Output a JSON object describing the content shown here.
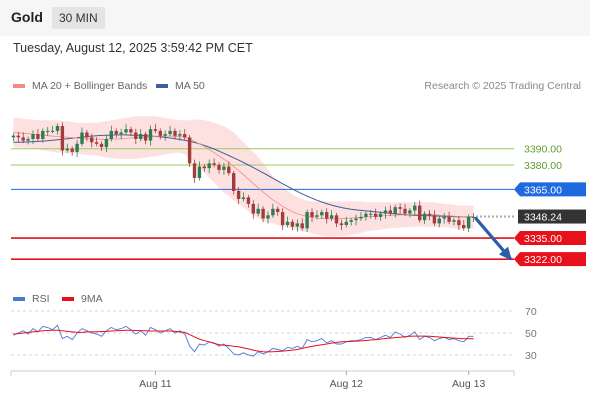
{
  "header": {
    "symbol": "Gold",
    "timeframe": "30 MIN",
    "timestamp": "Tuesday, August 12, 2025 3:59:42 PM CET"
  },
  "legend": {
    "ma_bb": {
      "label": "MA 20 + Bollinger Bands",
      "color": "#f28b82"
    },
    "ma50": {
      "label": "MA 50",
      "color": "#3f5f9e"
    },
    "rsi": {
      "label": "RSI",
      "color": "#4a7ad6"
    },
    "ma9": {
      "label": "9MA",
      "color": "#e8101a"
    }
  },
  "copyright": "Research © 2025 Trading Central",
  "colors": {
    "up": "#2e7d52",
    "down": "#a33c3c",
    "band": "#fde1e1",
    "resistance": "#9ccc65",
    "pivot": "#1e6be0",
    "support": "#e8101a",
    "arrow": "#2b5ea7"
  },
  "chart_data": [
    {
      "type": "candlestick",
      "title": "Gold 30 MIN",
      "ylim": [
        3303,
        3420
      ],
      "x_ticks": [
        {
          "label": "Aug 11",
          "index": 29
        },
        {
          "label": "Aug 12",
          "index": 68
        },
        {
          "label": "Aug 13",
          "index": 93
        }
      ],
      "levels": [
        {
          "value": 3390.0,
          "label": "3390.00",
          "kind": "resistance"
        },
        {
          "value": 3380.0,
          "label": "3380.00",
          "kind": "resistance"
        },
        {
          "value": 3365.0,
          "label": "3365.00",
          "kind": "pivot"
        },
        {
          "value": 3348.24,
          "label": "3348.24",
          "kind": "last"
        },
        {
          "value": 3335.0,
          "label": "3335.00",
          "kind": "support"
        },
        {
          "value": 3322.0,
          "label": "3322.00",
          "kind": "support"
        }
      ],
      "forecast_arrow": {
        "from": 3348.24,
        "to": 3322.0
      },
      "closes": [
        3398,
        3397,
        3395,
        3396,
        3399,
        3396,
        3401,
        3401,
        3401,
        3404,
        3389,
        3390,
        3388,
        3393,
        3400,
        3397,
        3394,
        3393,
        3391,
        3396,
        3401,
        3399,
        3400,
        3402,
        3400,
        3396,
        3399,
        3395,
        3402,
        3401,
        3398,
        3399,
        3401,
        3398,
        3399,
        3397,
        3381,
        3372,
        3379,
        3378,
        3381,
        3380,
        3377,
        3379,
        3375,
        3364,
        3359,
        3360,
        3356,
        3350,
        3353,
        3347,
        3349,
        3353,
        3351,
        3343,
        3345,
        3342,
        3344,
        3341,
        3351,
        3348,
        3349,
        3351,
        3347,
        3349,
        3344,
        3343,
        3345,
        3346,
        3347,
        3348,
        3350,
        3350,
        3348,
        3350,
        3352,
        3350,
        3354,
        3353,
        3350,
        3352,
        3355,
        3346,
        3350,
        3349,
        3344,
        3347,
        3348,
        3345,
        3346,
        3343,
        3341,
        3348,
        3348
      ],
      "ma20": [
        3400,
        3399.8,
        3399.5,
        3399.3,
        3399,
        3398.6,
        3398.3,
        3398,
        3397.8,
        3397.5,
        3397.3,
        3397.1,
        3396.8,
        3396.5,
        3396.3,
        3396.1,
        3396,
        3395.9,
        3395.8,
        3395.8,
        3395.9,
        3396,
        3396.1,
        3396.3,
        3396.6,
        3396.8,
        3397.1,
        3397.3,
        3397.5,
        3397.6,
        3397.7,
        3397.8,
        3397.8,
        3397.7,
        3397.5,
        3397,
        3396,
        3394.5,
        3393,
        3391.5,
        3389.5,
        3387.5,
        3385.5,
        3383.5,
        3381.5,
        3379,
        3376.5,
        3374,
        3371.3,
        3368.5,
        3366,
        3363.3,
        3360.8,
        3358.5,
        3356.5,
        3354.5,
        3352.8,
        3351.2,
        3350,
        3349,
        3348.3,
        3347.7,
        3347.3,
        3347,
        3346.8,
        3346.8,
        3346.8,
        3346.9,
        3347,
        3347.3,
        3347.5,
        3347.7,
        3348,
        3348.2,
        3348.4,
        3348.6,
        3348.8,
        3349,
        3349.1,
        3349.2,
        3349.3,
        3349.4,
        3349.5,
        3349.5,
        3349.5,
        3349.4,
        3349.3,
        3349.1,
        3348.9,
        3348.7,
        3348.5,
        3348.2,
        3348,
        3347.9,
        3347.8
      ],
      "bb_upper": [
        3409,
        3409,
        3408.5,
        3408,
        3408,
        3407.5,
        3407.5,
        3407.5,
        3407.5,
        3407.5,
        3407,
        3407,
        3406.5,
        3406,
        3406,
        3406,
        3406,
        3406,
        3406.5,
        3407,
        3407.5,
        3408,
        3408.5,
        3409,
        3409.5,
        3410,
        3410,
        3410,
        3410,
        3410,
        3409.5,
        3409,
        3408.5,
        3408,
        3407.5,
        3407.5,
        3407.5,
        3408,
        3408,
        3407.5,
        3407,
        3406,
        3405,
        3404,
        3402,
        3400,
        3397,
        3394,
        3391,
        3388,
        3385,
        3381,
        3377,
        3373,
        3370,
        3367,
        3364,
        3362,
        3360,
        3359,
        3358,
        3357.5,
        3357.5,
        3357.5,
        3357.5,
        3357.5,
        3357.5,
        3357.5,
        3357.5,
        3357.5,
        3357.5,
        3357.5,
        3357,
        3357,
        3357,
        3357,
        3357,
        3357,
        3357,
        3357,
        3357,
        3357,
        3357,
        3357,
        3357,
        3357,
        3357,
        3356.5,
        3356,
        3356,
        3355.5,
        3355,
        3355,
        3355,
        3355
      ],
      "bb_lower": [
        3391,
        3390.6,
        3390.5,
        3390.6,
        3390,
        3389.7,
        3389.1,
        3388.5,
        3388.1,
        3387.5,
        3387.6,
        3387.2,
        3387.1,
        3387,
        3386.6,
        3386.2,
        3386,
        3385.8,
        3385.1,
        3384.6,
        3384.3,
        3384,
        3383.7,
        3383.6,
        3383.7,
        3383.6,
        3384.2,
        3384.6,
        3385,
        3385.2,
        3385.9,
        3386.6,
        3387.1,
        3387.4,
        3387.5,
        3386.5,
        3384.5,
        3381,
        3378,
        3375.5,
        3372,
        3369,
        3366,
        3363,
        3361,
        3358,
        3356,
        3354,
        3351.6,
        3349,
        3347,
        3345.6,
        3344.6,
        3344,
        3343,
        3342,
        3341.6,
        3340.4,
        3340,
        3339,
        3338.6,
        3337.9,
        3337.1,
        3336.5,
        3336.1,
        3336.1,
        3336.1,
        3336.3,
        3336.5,
        3337.1,
        3337.5,
        3337.9,
        3339,
        3339.4,
        3339.8,
        3340.2,
        3340.6,
        3341,
        3341.2,
        3341.4,
        3341.6,
        3341.8,
        3342,
        3342,
        3342,
        3341.8,
        3341.6,
        3341.7,
        3341.8,
        3341.4,
        3341,
        3340.4,
        3341,
        3340.8,
        3340.6
      ],
      "ma50": [
        3394,
        3394,
        3394.1,
        3394.2,
        3394.3,
        3394.5,
        3394.7,
        3394.9,
        3395.2,
        3395.5,
        3395.8,
        3396.1,
        3396.5,
        3396.8,
        3397.2,
        3397.5,
        3397.8,
        3398,
        3398.2,
        3398.3,
        3398.4,
        3398.5,
        3398.5,
        3398.5,
        3398.4,
        3398.3,
        3398.2,
        3398,
        3397.8,
        3397.6,
        3397.3,
        3397,
        3396.6,
        3396.2,
        3395.7,
        3395.2,
        3394.5,
        3393.8,
        3393,
        3392,
        3391,
        3389.8,
        3388.5,
        3387.2,
        3385.8,
        3384.4,
        3383,
        3381.5,
        3380,
        3378.4,
        3376.8,
        3375.2,
        3373.5,
        3371.8,
        3370.1,
        3368.4,
        3366.8,
        3365.2,
        3363.7,
        3362.2,
        3360.8,
        3359.5,
        3358.3,
        3357.2,
        3356.2,
        3355.3,
        3354.5,
        3353.8,
        3353.2,
        3352.7,
        3352.3,
        3352,
        3351.7,
        3351.4,
        3351.1,
        3350.8,
        3350.5,
        3350.2,
        3349.9,
        3349.6,
        3349.4,
        3349.2,
        3349,
        3348.9,
        3348.8,
        3348.7,
        3348.6,
        3348.5,
        3348.4,
        3348.3,
        3348.2,
        3348.1,
        3348,
        3348,
        3348
      ]
    },
    {
      "type": "line",
      "title": "RSI",
      "ylim": [
        20,
        80
      ],
      "y_ticks": [
        {
          "value": 70,
          "label": "70"
        },
        {
          "value": 50,
          "label": "50"
        },
        {
          "value": 30,
          "label": "30"
        }
      ],
      "series": [
        {
          "name": "RSI",
          "values": [
            48,
            50,
            52,
            49,
            54,
            51,
            56,
            55,
            53,
            57,
            45,
            47,
            44,
            50,
            54,
            52,
            50,
            49,
            47,
            52,
            55,
            53,
            54,
            56,
            53,
            49,
            52,
            48,
            55,
            53,
            50,
            52,
            54,
            50,
            52,
            49,
            38,
            33,
            40,
            39,
            42,
            41,
            38,
            40,
            36,
            31,
            30,
            32,
            30,
            29,
            33,
            31,
            33,
            36,
            35,
            34,
            37,
            36,
            38,
            36,
            44,
            42,
            43,
            45,
            41,
            43,
            40,
            40,
            42,
            43,
            43,
            44,
            46,
            46,
            44,
            46,
            48,
            46,
            51,
            49,
            46,
            48,
            51,
            44,
            47,
            46,
            43,
            45,
            46,
            44,
            45,
            43,
            42,
            47,
            47
          ]
        },
        {
          "name": "9MA",
          "values": [
            49,
            49.5,
            50,
            50.5,
            51,
            51.5,
            52,
            52.3,
            52.5,
            52.5,
            52,
            51.5,
            51,
            50.5,
            50.5,
            51,
            51,
            51.2,
            51.3,
            51.5,
            51.8,
            52,
            52.3,
            52.5,
            52.5,
            52.3,
            52.2,
            52,
            51.8,
            51.8,
            51.8,
            51.8,
            51.8,
            51.5,
            51,
            50.5,
            48.5,
            46.5,
            44.5,
            43,
            42,
            40.5,
            39.5,
            38.8,
            38.5,
            38,
            37.5,
            36.5,
            35.5,
            34.5,
            33.5,
            33,
            32.8,
            33,
            33.2,
            33.5,
            34,
            34.5,
            35,
            36,
            37,
            37.8,
            38.6,
            39.4,
            40,
            40.8,
            41.4,
            42,
            42.2,
            42.4,
            42.6,
            42.8,
            43.2,
            43.6,
            44,
            44.5,
            45,
            45.4,
            45.8,
            46.2,
            46.6,
            47,
            47.2,
            47.2,
            47.2,
            47,
            46.7,
            46.4,
            46,
            45.7,
            45.4,
            45.1,
            44.8,
            44.7,
            44.7
          ]
        }
      ]
    }
  ]
}
